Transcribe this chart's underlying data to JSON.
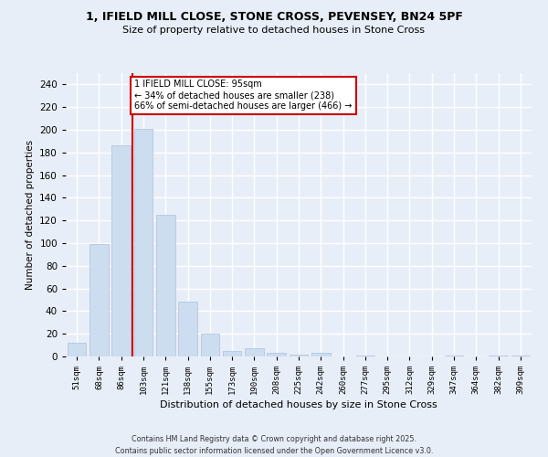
{
  "title_line1": "1, IFIELD MILL CLOSE, STONE CROSS, PEVENSEY, BN24 5PF",
  "title_line2": "Size of property relative to detached houses in Stone Cross",
  "xlabel": "Distribution of detached houses by size in Stone Cross",
  "ylabel": "Number of detached properties",
  "bar_color": "#ccddf0",
  "bar_edge_color": "#aac0dd",
  "categories": [
    "51sqm",
    "68sqm",
    "86sqm",
    "103sqm",
    "121sqm",
    "138sqm",
    "155sqm",
    "173sqm",
    "190sqm",
    "208sqm",
    "225sqm",
    "242sqm",
    "260sqm",
    "277sqm",
    "295sqm",
    "312sqm",
    "329sqm",
    "347sqm",
    "364sqm",
    "382sqm",
    "399sqm"
  ],
  "values": [
    12,
    99,
    186,
    201,
    125,
    48,
    20,
    5,
    7,
    3,
    2,
    3,
    0,
    1,
    0,
    0,
    0,
    1,
    0,
    1,
    1
  ],
  "ylim": [
    0,
    250
  ],
  "yticks": [
    0,
    20,
    40,
    60,
    80,
    100,
    120,
    140,
    160,
    180,
    200,
    220,
    240
  ],
  "annotation_text": "1 IFIELD MILL CLOSE: 95sqm\n← 34% of detached houses are smaller (238)\n66% of semi-detached houses are larger (466) →",
  "annotation_box_color": "#ffffff",
  "annotation_box_edge_color": "#cc0000",
  "footer_line1": "Contains HM Land Registry data © Crown copyright and database right 2025.",
  "footer_line2": "Contains public sector information licensed under the Open Government Licence v3.0.",
  "background_color": "#e8eef8",
  "grid_color": "#ffffff"
}
